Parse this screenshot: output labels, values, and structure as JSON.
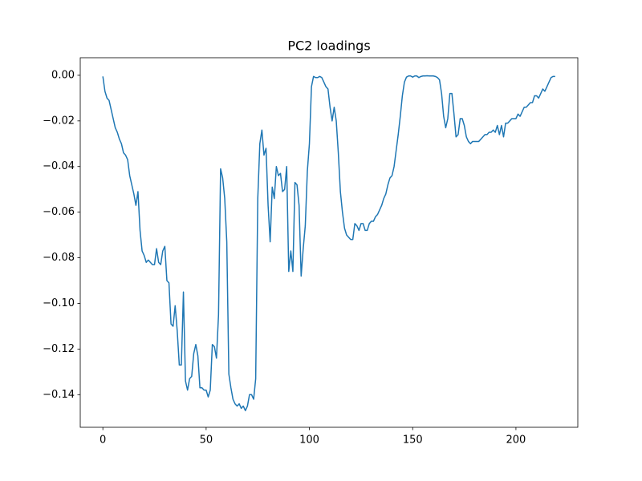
{
  "chart_data": {
    "type": "line",
    "title": "PC2 loadings",
    "x": [
      0,
      1,
      2,
      3,
      4,
      5,
      6,
      7,
      8,
      9,
      10,
      11,
      12,
      13,
      14,
      15,
      16,
      17,
      18,
      19,
      20,
      21,
      22,
      23,
      24,
      25,
      26,
      27,
      28,
      29,
      30,
      31,
      32,
      33,
      34,
      35,
      36,
      37,
      38,
      39,
      40,
      41,
      42,
      43,
      44,
      45,
      46,
      47,
      48,
      49,
      50,
      51,
      52,
      53,
      54,
      55,
      56,
      57,
      58,
      59,
      60,
      61,
      62,
      63,
      64,
      65,
      66,
      67,
      68,
      69,
      70,
      71,
      72,
      73,
      74,
      75,
      76,
      77,
      78,
      79,
      80,
      81,
      82,
      83,
      84,
      85,
      86,
      87,
      88,
      89,
      90,
      91,
      92,
      93,
      94,
      95,
      96,
      97,
      98,
      99,
      100,
      101,
      102,
      103,
      104,
      105,
      106,
      107,
      108,
      109,
      110,
      111,
      112,
      113,
      114,
      115,
      116,
      117,
      118,
      119,
      120,
      121,
      122,
      123,
      124,
      125,
      126,
      127,
      128,
      129,
      130,
      131,
      132,
      133,
      134,
      135,
      136,
      137,
      138,
      139,
      140,
      141,
      142,
      143,
      144,
      145,
      146,
      147,
      148,
      149,
      150,
      151,
      152,
      153,
      154,
      155,
      156,
      157,
      158,
      159,
      160,
      161,
      162,
      163,
      164,
      165,
      166,
      167,
      168,
      169,
      170,
      171,
      172,
      173,
      174,
      175,
      176,
      177,
      178,
      179,
      180,
      181,
      182,
      183,
      184,
      185,
      186,
      187,
      188,
      189,
      190,
      191,
      192,
      193,
      194,
      195,
      196,
      197,
      198,
      199,
      200,
      201,
      202,
      203,
      204,
      205,
      206,
      207,
      208,
      209,
      210,
      211,
      212,
      213,
      214,
      215,
      216,
      217,
      218,
      219
    ],
    "series": [
      {
        "color": "#1f77b4",
        "values": [
          -0.0005,
          -0.007,
          -0.01,
          -0.011,
          -0.015,
          -0.019,
          -0.023,
          -0.025,
          -0.028,
          -0.03,
          -0.034,
          -0.035,
          -0.037,
          -0.044,
          -0.048,
          -0.052,
          -0.057,
          -0.051,
          -0.068,
          -0.077,
          -0.079,
          -0.082,
          -0.081,
          -0.082,
          -0.083,
          -0.083,
          -0.076,
          -0.082,
          -0.083,
          -0.077,
          -0.075,
          -0.09,
          -0.091,
          -0.109,
          -0.11,
          -0.101,
          -0.112,
          -0.127,
          -0.127,
          -0.095,
          -0.134,
          -0.138,
          -0.133,
          -0.132,
          -0.122,
          -0.118,
          -0.123,
          -0.137,
          -0.137,
          -0.138,
          -0.138,
          -0.141,
          -0.138,
          -0.118,
          -0.119,
          -0.124,
          -0.105,
          -0.041,
          -0.045,
          -0.054,
          -0.073,
          -0.131,
          -0.137,
          -0.142,
          -0.144,
          -0.145,
          -0.144,
          -0.146,
          -0.145,
          -0.147,
          -0.145,
          -0.14,
          -0.14,
          -0.142,
          -0.133,
          -0.054,
          -0.03,
          -0.024,
          -0.035,
          -0.032,
          -0.057,
          -0.073,
          -0.049,
          -0.054,
          -0.04,
          -0.044,
          -0.043,
          -0.051,
          -0.05,
          -0.04,
          -0.086,
          -0.077,
          -0.086,
          -0.047,
          -0.048,
          -0.057,
          -0.088,
          -0.076,
          -0.066,
          -0.042,
          -0.03,
          -0.005,
          -0.0005,
          -0.001,
          -0.001,
          -0.0005,
          -0.001,
          -0.003,
          -0.005,
          -0.006,
          -0.014,
          -0.02,
          -0.014,
          -0.02,
          -0.034,
          -0.051,
          -0.06,
          -0.067,
          -0.07,
          -0.071,
          -0.072,
          -0.072,
          -0.065,
          -0.066,
          -0.068,
          -0.065,
          -0.065,
          -0.068,
          -0.068,
          -0.065,
          -0.064,
          -0.064,
          -0.062,
          -0.061,
          -0.059,
          -0.057,
          -0.054,
          -0.052,
          -0.048,
          -0.045,
          -0.044,
          -0.04,
          -0.033,
          -0.026,
          -0.018,
          -0.009,
          -0.003,
          -0.0008,
          -0.0003,
          -0.0003,
          -0.0008,
          -0.0003,
          -0.0003,
          -0.001,
          -0.0005,
          -0.0003,
          -0.0003,
          -0.0002,
          -0.0003,
          -0.0003,
          -0.0003,
          -0.0005,
          -0.001,
          -0.002,
          -0.008,
          -0.018,
          -0.023,
          -0.019,
          -0.008,
          -0.008,
          -0.017,
          -0.027,
          -0.026,
          -0.019,
          -0.019,
          -0.022,
          -0.027,
          -0.029,
          -0.03,
          -0.029,
          -0.029,
          -0.029,
          -0.029,
          -0.028,
          -0.027,
          -0.026,
          -0.026,
          -0.025,
          -0.025,
          -0.024,
          -0.025,
          -0.022,
          -0.026,
          -0.022,
          -0.027,
          -0.021,
          -0.021,
          -0.02,
          -0.019,
          -0.019,
          -0.019,
          -0.017,
          -0.018,
          -0.016,
          -0.014,
          -0.014,
          -0.013,
          -0.012,
          -0.012,
          -0.009,
          -0.009,
          -0.01,
          -0.008,
          -0.006,
          -0.007,
          -0.005,
          -0.003,
          -0.001,
          -0.0005,
          -0.0005
        ]
      }
    ],
    "xlim": [
      -10.95,
      229.95
    ],
    "xticks": [
      0,
      50,
      100,
      150,
      200
    ],
    "ylim": [
      -0.1543,
      0.0077
    ],
    "yticks": [
      {
        "value": -0.14,
        "label": "−0.14"
      },
      {
        "value": -0.12,
        "label": "−0.12"
      },
      {
        "value": -0.1,
        "label": "−0.10"
      },
      {
        "value": -0.08,
        "label": "−0.08"
      },
      {
        "value": -0.06,
        "label": "−0.06"
      },
      {
        "value": -0.04,
        "label": "−0.04"
      },
      {
        "value": -0.02,
        "label": "−0.02"
      },
      {
        "value": 0,
        "label": "0.00"
      }
    ]
  }
}
